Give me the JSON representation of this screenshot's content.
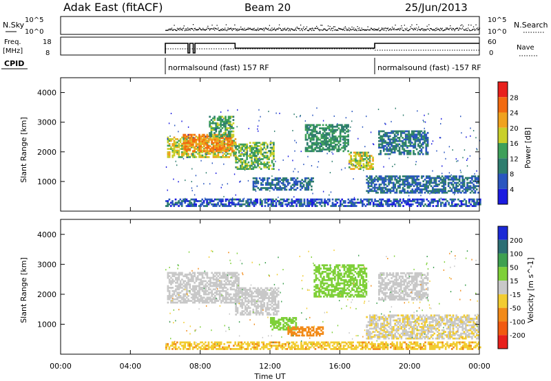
{
  "header": {
    "station": "Adak East (fitACF)",
    "beam": "Beam 20",
    "date": "25/Jun/2013"
  },
  "noise_panel": {
    "left_label": "N.Sky",
    "right_label": "N.Search",
    "tick_top": "10^5",
    "tick_bottom": "10^0"
  },
  "freq_panel": {
    "left_label_1": "Freq.",
    "left_label_2": "[MHz]",
    "right_label": "Nave",
    "left_ticks": [
      "18",
      "8"
    ],
    "right_ticks": [
      "60",
      "0"
    ]
  },
  "cpid": {
    "label": "CPID",
    "segments": [
      {
        "start_hour": 6.0,
        "text": "normalsound (fast) 157 RF"
      },
      {
        "start_hour": 18.0,
        "text": "normalsound (fast) -157 RF"
      }
    ]
  },
  "x_axis": {
    "label": "Time UT",
    "range_hours": [
      0,
      24
    ],
    "ticks": [
      "00:00",
      "04:00",
      "08:00",
      "12:00",
      "16:00",
      "20:00",
      "00:00"
    ]
  },
  "chart_data": [
    {
      "type": "heatmap",
      "parameter": "power",
      "ylabel": "Slant Range [km]",
      "ylim": [
        0,
        4500
      ],
      "yticks": [
        1000,
        2000,
        3000,
        4000
      ],
      "colorbar": {
        "label": "Power [dB]",
        "ticks": [
          4,
          8,
          12,
          16,
          20,
          24,
          28
        ],
        "colors": [
          "#1b1be0",
          "#2a56c0",
          "#2e7d6e",
          "#3ea05a",
          "#c9cf2a",
          "#f0a21e",
          "#f26a10",
          "#e8201c"
        ]
      },
      "data_start_hour": 6.0,
      "features": [
        {
          "t_start": 6.1,
          "t_end": 10.0,
          "r_start": 1800,
          "r_end": 2500,
          "level": 18
        },
        {
          "t_start": 7.0,
          "t_end": 9.8,
          "r_start": 2000,
          "r_end": 2600,
          "level": 24
        },
        {
          "t_start": 8.5,
          "t_end": 9.9,
          "r_start": 2500,
          "r_end": 3200,
          "level": 14
        },
        {
          "t_start": 10.0,
          "t_end": 12.2,
          "r_start": 1400,
          "r_end": 2300,
          "level": 15
        },
        {
          "t_start": 11.0,
          "t_end": 14.5,
          "r_start": 700,
          "r_end": 1100,
          "level": 8
        },
        {
          "t_start": 14.0,
          "t_end": 16.5,
          "r_start": 2000,
          "r_end": 2900,
          "level": 12
        },
        {
          "t_start": 16.5,
          "t_end": 17.9,
          "r_start": 1400,
          "r_end": 2000,
          "level": 18
        },
        {
          "t_start": 17.5,
          "t_end": 23.9,
          "r_start": 600,
          "r_end": 1200,
          "level": 8
        },
        {
          "t_start": 18.2,
          "t_end": 21.0,
          "r_start": 1900,
          "r_end": 2700,
          "level": 9
        },
        {
          "t_start": 6.0,
          "t_end": 24.0,
          "r_start": 150,
          "r_end": 400,
          "level": 6
        }
      ]
    },
    {
      "type": "heatmap",
      "parameter": "velocity",
      "ylabel": "Slant Range [km]",
      "ylim": [
        0,
        4500
      ],
      "yticks": [
        1000,
        2000,
        3000,
        4000
      ],
      "colorbar": {
        "label": "Velocity [m s^-1]",
        "ticks": [
          200,
          100,
          50,
          15,
          -15,
          -50,
          -100,
          -200
        ],
        "colors": [
          "#1b2ad6",
          "#2c6e74",
          "#3ea050",
          "#7ed038",
          "#c8c8c8",
          "#f2cc30",
          "#f28a18",
          "#f25a10",
          "#e8201c"
        ]
      },
      "data_start_hour": 6.0,
      "features": [
        {
          "t_start": 6.1,
          "t_end": 10.2,
          "r_start": 1700,
          "r_end": 2700,
          "v": 0
        },
        {
          "t_start": 10.0,
          "t_end": 12.5,
          "r_start": 1300,
          "r_end": 2200,
          "v": 0
        },
        {
          "t_start": 12.0,
          "t_end": 13.5,
          "r_start": 800,
          "r_end": 1200,
          "v": 30
        },
        {
          "t_start": 13.0,
          "t_end": 15.0,
          "r_start": 600,
          "r_end": 900,
          "v": -80
        },
        {
          "t_start": 14.5,
          "t_end": 17.5,
          "r_start": 1900,
          "r_end": 3000,
          "v": 30
        },
        {
          "t_start": 18.2,
          "t_end": 21.0,
          "r_start": 1800,
          "r_end": 2700,
          "v": 0
        },
        {
          "t_start": 17.5,
          "t_end": 23.9,
          "r_start": 500,
          "r_end": 1300,
          "v": -10
        },
        {
          "t_start": 6.0,
          "t_end": 24.0,
          "r_start": 150,
          "r_end": 400,
          "v": -40
        }
      ]
    }
  ]
}
